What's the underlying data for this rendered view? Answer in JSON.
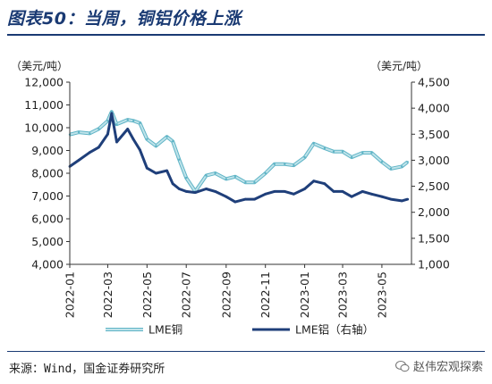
{
  "header": {
    "title": "图表50：当周，铜铝价格上涨"
  },
  "footer": {
    "source": "来源：Wind，国金证券研究所",
    "watermark": "赵伟宏观探索",
    "watermark_icon": "wechat-icon"
  },
  "colors": {
    "title": "#1a3a73",
    "copper_fill": "#bfe3ea",
    "copper_edge": "#5fb4c6",
    "aluminum": "#1f3f7a"
  },
  "chart_data": {
    "type": "line",
    "left_unit": "（美元/吨）",
    "right_unit": "（美元/吨）",
    "y_left": {
      "min": 4000,
      "max": 12000,
      "ticks": [
        "4,000",
        "5,000",
        "6,000",
        "7,000",
        "8,000",
        "9,000",
        "10,000",
        "11,000",
        "12,000"
      ]
    },
    "y_right": {
      "min": 1000,
      "max": 4500,
      "ticks": [
        "1,000",
        "1,500",
        "2,000",
        "2,500",
        "3,000",
        "3,500",
        "4,000",
        "4,500"
      ]
    },
    "x_ticks": [
      "2022-01",
      "2022-03",
      "2022-05",
      "2022-07",
      "2022-09",
      "2022-11",
      "2023-01",
      "2023-03",
      "2023-05"
    ],
    "x_range": [
      "2022-01",
      "2023-06"
    ],
    "series": [
      {
        "name": "LME铜",
        "axis": "left",
        "points": [
          [
            "2022-01",
            9700
          ],
          [
            "2022-01-15",
            9800
          ],
          [
            "2022-02",
            9750
          ],
          [
            "2022-02-15",
            9950
          ],
          [
            "2022-03",
            10300
          ],
          [
            "2022-03-07",
            10700
          ],
          [
            "2022-03-15",
            10150
          ],
          [
            "2022-04",
            10350
          ],
          [
            "2022-04-10",
            10300
          ],
          [
            "2022-04-20",
            10200
          ],
          [
            "2022-05",
            9500
          ],
          [
            "2022-05-15",
            9200
          ],
          [
            "2022-06",
            9600
          ],
          [
            "2022-06-10",
            9400
          ],
          [
            "2022-06-20",
            8600
          ],
          [
            "2022-07",
            7800
          ],
          [
            "2022-07-15",
            7200
          ],
          [
            "2022-08",
            7900
          ],
          [
            "2022-08-15",
            8000
          ],
          [
            "2022-09",
            7750
          ],
          [
            "2022-09-15",
            7850
          ],
          [
            "2022-10",
            7600
          ],
          [
            "2022-10-15",
            7600
          ],
          [
            "2022-11",
            8000
          ],
          [
            "2022-11-15",
            8400
          ],
          [
            "2022-12",
            8400
          ],
          [
            "2022-12-15",
            8350
          ],
          [
            "2023-01",
            8700
          ],
          [
            "2023-01-15",
            9300
          ],
          [
            "2023-02",
            9100
          ],
          [
            "2023-02-15",
            8950
          ],
          [
            "2023-03",
            8950
          ],
          [
            "2023-03-15",
            8700
          ],
          [
            "2023-04",
            8900
          ],
          [
            "2023-04-15",
            8900
          ],
          [
            "2023-05",
            8500
          ],
          [
            "2023-05-15",
            8200
          ],
          [
            "2023-06",
            8300
          ],
          [
            "2023-06-10",
            8500
          ]
        ]
      },
      {
        "name": "LME铝（右轴）",
        "axis": "right",
        "points": [
          [
            "2022-01",
            2880
          ],
          [
            "2022-01-15",
            3000
          ],
          [
            "2022-02",
            3150
          ],
          [
            "2022-02-15",
            3250
          ],
          [
            "2022-03",
            3500
          ],
          [
            "2022-03-07",
            3900
          ],
          [
            "2022-03-15",
            3350
          ],
          [
            "2022-04",
            3600
          ],
          [
            "2022-04-10",
            3400
          ],
          [
            "2022-04-20",
            3200
          ],
          [
            "2022-05",
            2850
          ],
          [
            "2022-05-15",
            2750
          ],
          [
            "2022-06",
            2800
          ],
          [
            "2022-06-10",
            2550
          ],
          [
            "2022-06-20",
            2450
          ],
          [
            "2022-07",
            2400
          ],
          [
            "2022-07-15",
            2380
          ],
          [
            "2022-08",
            2450
          ],
          [
            "2022-08-15",
            2400
          ],
          [
            "2022-09",
            2300
          ],
          [
            "2022-09-15",
            2200
          ],
          [
            "2022-10",
            2250
          ],
          [
            "2022-10-15",
            2250
          ],
          [
            "2022-11",
            2350
          ],
          [
            "2022-11-15",
            2400
          ],
          [
            "2022-12",
            2400
          ],
          [
            "2022-12-15",
            2350
          ],
          [
            "2023-01",
            2450
          ],
          [
            "2023-01-15",
            2600
          ],
          [
            "2023-02",
            2550
          ],
          [
            "2023-02-15",
            2400
          ],
          [
            "2023-03",
            2400
          ],
          [
            "2023-03-15",
            2300
          ],
          [
            "2023-04",
            2400
          ],
          [
            "2023-04-15",
            2350
          ],
          [
            "2023-05",
            2300
          ],
          [
            "2023-05-15",
            2250
          ],
          [
            "2023-06",
            2220
          ],
          [
            "2023-06-10",
            2250
          ]
        ]
      }
    ],
    "legend": {
      "placement": "bottom"
    }
  }
}
